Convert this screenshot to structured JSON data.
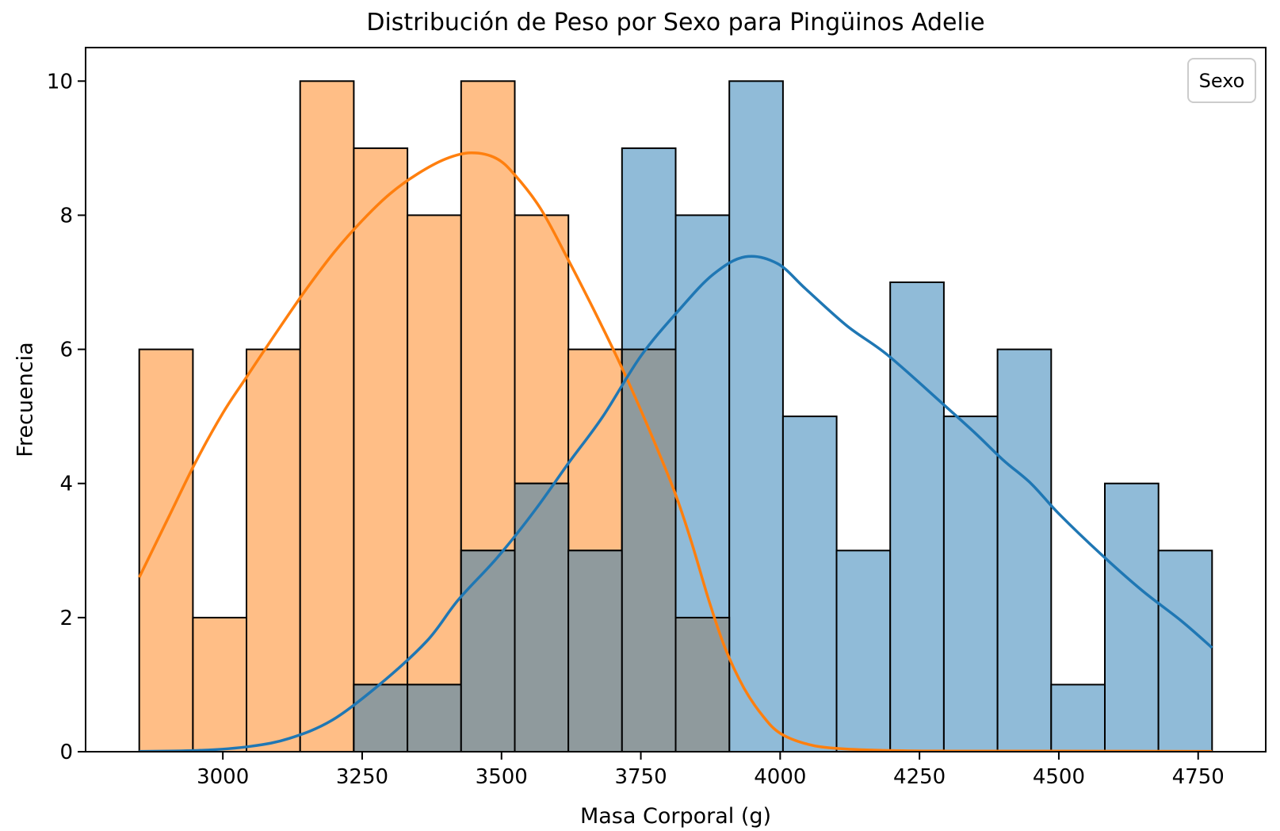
{
  "title": "Distribución de Peso por Sexo para Pingüinos Adelie",
  "x_axis": {
    "label": "Masa Corporal (g)",
    "ticks": [
      3000,
      3250,
      3500,
      3750,
      4000,
      4250,
      4500,
      4750
    ]
  },
  "y_axis": {
    "label": "Frecuencia",
    "ticks": [
      0,
      2,
      4,
      6,
      8,
      10
    ]
  },
  "legend": {
    "title": "Sexo",
    "position": "upper right"
  },
  "colors": {
    "orange_fill": "#FFBE86",
    "blue_fill": "#90BBD8",
    "overlap_fill": "#8F9A9D",
    "orange_line": "#FF7F0E",
    "blue_line": "#1F77B4",
    "bar_edge": "#000000",
    "axis": "#000000",
    "legend_border": "#CCCCCC"
  },
  "chart_data": {
    "type": "bar",
    "subtype": "overlaid-histogram-with-kde",
    "title": "Distribución de Peso por Sexo para Pingüinos Adelie",
    "xlabel": "Masa Corporal (g)",
    "ylabel": "Frecuencia",
    "xlim": [
      2753.75,
      4871.25
    ],
    "ylim": [
      0,
      10.5
    ],
    "grid": false,
    "legend_title": "Sexo",
    "legend_position": "upper right",
    "bin_edges": [
      2850,
      2946.25,
      3042.5,
      3138.75,
      3235,
      3331.25,
      3427.5,
      3523.75,
      3620,
      3716.25,
      3812.5,
      3908.75,
      4005,
      4101.25,
      4197.5,
      4293.75,
      4390,
      4486.25,
      4582.5,
      4678.75,
      4775
    ],
    "series": [
      {
        "name": "orange",
        "bar_fill": "#FFBE86",
        "counts": [
          6,
          2,
          6,
          10,
          9,
          8,
          10,
          8,
          6,
          6,
          2,
          0,
          0,
          0,
          0,
          0,
          0,
          0,
          0,
          0
        ]
      },
      {
        "name": "blue",
        "bar_fill": "#90BBD8",
        "counts": [
          0,
          0,
          0,
          0,
          1,
          1,
          3,
          4,
          3,
          9,
          8,
          10,
          5,
          3,
          7,
          5,
          6,
          1,
          4,
          3
        ]
      }
    ],
    "kde_curves": [
      {
        "series": "orange",
        "color": "#FF7F0E",
        "points": [
          [
            2850,
            2.6
          ],
          [
            2900,
            3.45
          ],
          [
            2950,
            4.3
          ],
          [
            3000,
            5.05
          ],
          [
            3042,
            5.58
          ],
          [
            3100,
            6.3
          ],
          [
            3150,
            6.9
          ],
          [
            3200,
            7.45
          ],
          [
            3250,
            7.92
          ],
          [
            3300,
            8.32
          ],
          [
            3350,
            8.62
          ],
          [
            3400,
            8.84
          ],
          [
            3445,
            8.93
          ],
          [
            3490,
            8.85
          ],
          [
            3524,
            8.6
          ],
          [
            3570,
            8.1
          ],
          [
            3617,
            7.38
          ],
          [
            3665,
            6.6
          ],
          [
            3713,
            5.78
          ],
          [
            3760,
            4.9
          ],
          [
            3809,
            3.91
          ],
          [
            3840,
            3.15
          ],
          [
            3872,
            2.26
          ],
          [
            3901,
            1.55
          ],
          [
            3935,
            0.95
          ],
          [
            3970,
            0.52
          ],
          [
            4001,
            0.27
          ],
          [
            4050,
            0.11
          ],
          [
            4100,
            0.05
          ],
          [
            4180,
            0.02
          ],
          [
            4300,
            0.01
          ],
          [
            4500,
            0.008
          ],
          [
            4775,
            0.005
          ]
        ]
      },
      {
        "series": "blue",
        "color": "#1F77B4",
        "points": [
          [
            2850,
            0.005
          ],
          [
            2960,
            0.02
          ],
          [
            3050,
            0.08
          ],
          [
            3120,
            0.2
          ],
          [
            3196,
            0.47
          ],
          [
            3281,
            1.0
          ],
          [
            3366,
            1.65
          ],
          [
            3422,
            2.26
          ],
          [
            3493,
            2.9
          ],
          [
            3560,
            3.6
          ],
          [
            3620,
            4.3
          ],
          [
            3682,
            5.0
          ],
          [
            3750,
            5.9
          ],
          [
            3820,
            6.6
          ],
          [
            3880,
            7.12
          ],
          [
            3937,
            7.38
          ],
          [
            3995,
            7.28
          ],
          [
            4046,
            6.9
          ],
          [
            4120,
            6.35
          ],
          [
            4192,
            5.92
          ],
          [
            4290,
            5.2
          ],
          [
            4350,
            4.75
          ],
          [
            4400,
            4.35
          ],
          [
            4450,
            4.0
          ],
          [
            4500,
            3.55
          ],
          [
            4575,
            2.95
          ],
          [
            4650,
            2.4
          ],
          [
            4720,
            1.95
          ],
          [
            4775,
            1.55
          ]
        ]
      }
    ],
    "overlap_fill": "#8F9A9D"
  },
  "layout_note": ""
}
